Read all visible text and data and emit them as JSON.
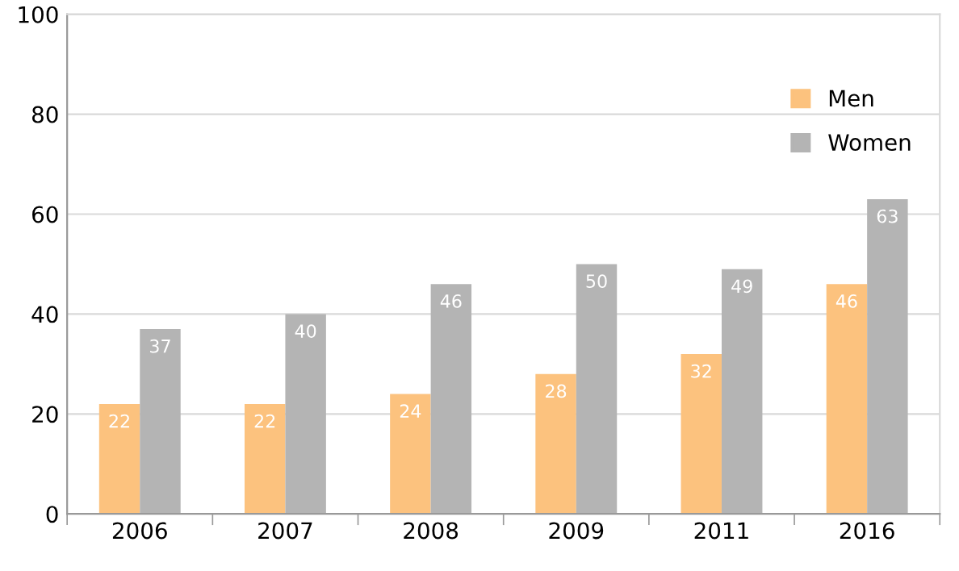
{
  "chart_data": {
    "type": "bar",
    "categories": [
      "2006",
      "2007",
      "2008",
      "2009",
      "2011",
      "2016"
    ],
    "series": [
      {
        "name": "Men",
        "color": "#fcc27e",
        "values": [
          22,
          22,
          24,
          28,
          32,
          46
        ]
      },
      {
        "name": "Women",
        "color": "#b4b4b4",
        "values": [
          37,
          40,
          46,
          50,
          49,
          63
        ]
      }
    ],
    "ylim": [
      0,
      100
    ],
    "yticks": [
      0,
      20,
      40,
      60,
      80,
      100
    ],
    "grid": "y",
    "legend": "top right",
    "data_labels": true
  }
}
